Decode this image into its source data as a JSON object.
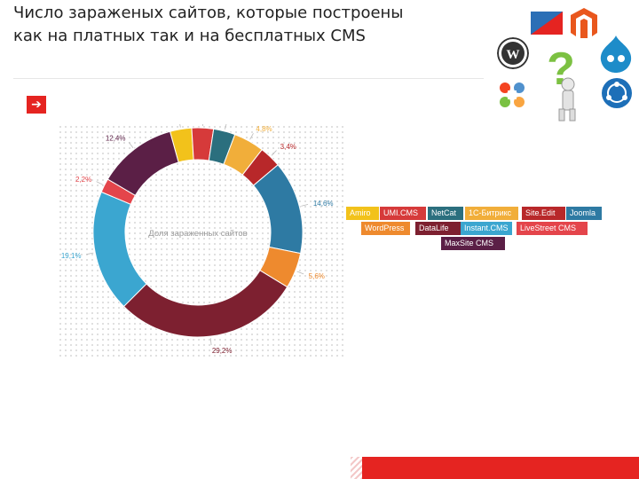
{
  "page": {
    "title": "Число зараженых сайтов, которые построены как на платных так и на бесплатных CMS",
    "arrow_glyph": "➔"
  },
  "colors": {
    "accent_red": "#e52421"
  },
  "chart_data": {
    "type": "donut",
    "title": "",
    "center_label": "Доля зараженных сайтов",
    "slices": [
      {
        "name": "Amiro",
        "value": 3.4,
        "label": "3,4%",
        "color": "#f2c21b"
      },
      {
        "name": "UMI.CMS",
        "value": 3.4,
        "label": "3,4%",
        "color": "#d63a3a"
      },
      {
        "name": "NetCat",
        "value": 3.4,
        "label": "3,4%",
        "color": "#2b6f7e"
      },
      {
        "name": "1С-Битрикс",
        "value": 4.8,
        "label": "4,8%",
        "color": "#f1ae3a"
      },
      {
        "name": "Site.Edit",
        "value": 3.4,
        "label": "3,4%",
        "color": "#b8282a"
      },
      {
        "name": "Joomla",
        "value": 14.6,
        "label": "14,6%",
        "color": "#2e7aa3"
      },
      {
        "name": "WordPress",
        "value": 5.6,
        "label": "5,6%",
        "color": "#ee8a2e"
      },
      {
        "name": "DataLife",
        "value": 29.2,
        "label": "29,2%",
        "color": "#7d2030"
      },
      {
        "name": "Instant.CMS",
        "value": 19.1,
        "label": "19,1%",
        "color": "#3ba6d0"
      },
      {
        "name": "LiveStreet CMS",
        "value": 2.2,
        "label": "2,2%",
        "color": "#e4454b"
      },
      {
        "name": "MaxSite CMS",
        "value": 12.4,
        "label": "12,4%",
        "color": "#5b1f46"
      }
    ],
    "legend": [
      {
        "label": "Amiro",
        "color": "#f2c21b"
      },
      {
        "label": "UMI.CMS",
        "color": "#d63a3a"
      },
      {
        "label": "NetCat",
        "color": "#2b6f7e"
      },
      {
        "label": "1С-Битрикс",
        "color": "#f1ae3a"
      },
      {
        "label": "Site.Edit",
        "color": "#b8282a"
      },
      {
        "label": "Joomla",
        "color": "#2e7aa3"
      },
      {
        "label": "WordPress",
        "color": "#ee8a2e"
      },
      {
        "label": "DataLife",
        "color": "#7d2030"
      },
      {
        "label": "Instant.CMS",
        "color": "#3ba6d0"
      },
      {
        "label": "LiveStreet CMS",
        "color": "#e4454b"
      },
      {
        "label": "MaxSite CMS",
        "color": "#5b1f46"
      }
    ],
    "legend_placement": "right"
  },
  "logos": [
    {
      "name": "wordpress-logo-icon"
    },
    {
      "name": "magento-logo-icon"
    },
    {
      "name": "drupal-logo-icon"
    },
    {
      "name": "joomla-logo-icon"
    },
    {
      "name": "question-person-icon"
    },
    {
      "name": "cms-logo-icon"
    }
  ]
}
